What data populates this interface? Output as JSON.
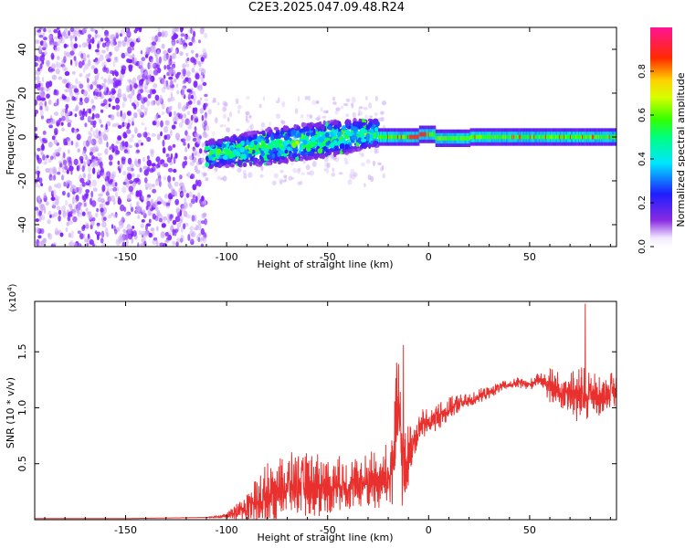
{
  "title": "C2E3.2025.047.09.48.R24",
  "colors": {
    "snr_line": "#e8312e",
    "spectrum_sparse": "#7f1fff",
    "spectrum_light": "#c9a6f5"
  },
  "chart_data": [
    {
      "type": "heatmap",
      "name": "spectrogram",
      "xlabel": "Height of straight line (km)",
      "ylabel": "Frequency (Hz)",
      "xlim": [
        -195,
        93
      ],
      "ylim": [
        -50,
        50
      ],
      "x_ticks": [
        -150,
        -100,
        -50,
        0,
        50
      ],
      "x_tick_labels": [
        "-150",
        "-100",
        "-50",
        "0",
        "50"
      ],
      "y_ticks": [
        -40,
        -20,
        0,
        20,
        40
      ],
      "y_tick_labels": [
        "-40",
        "-20",
        "0",
        "20",
        "40"
      ],
      "colorbar": {
        "label": "Normalized spectral amplitude",
        "range": [
          0,
          1
        ],
        "ticks": [
          0.0,
          0.2,
          0.4,
          0.6,
          0.8
        ],
        "tick_labels": [
          "0.0",
          "0.2",
          "0.4",
          "0.6",
          "0.8"
        ],
        "colormap": "rainbow (white-purple-blue-cyan-green-yellow-red-magenta)"
      },
      "regions": [
        {
          "x_range": [
            -195,
            -110
          ],
          "freq_range": [
            -50,
            50
          ],
          "amplitude": 0.08,
          "pattern": "sparse broadband speckle"
        },
        {
          "x_range": [
            -110,
            -25
          ],
          "freq_center": [
            -8,
            2
          ],
          "freq_halfwidth": 6,
          "amplitude": 0.3,
          "pattern": "noisy band"
        },
        {
          "x_range": [
            -25,
            93
          ],
          "freq_center": 0,
          "freq_halfwidth": 3,
          "amplitude": 0.5,
          "pattern": "narrow carrier line with red peaks"
        }
      ]
    },
    {
      "type": "line",
      "name": "snr",
      "xlabel": "Height of straight line (km)",
      "ylabel": "SNR (10 * v/v)",
      "y_multiplier": "(x10^4)",
      "xlim": [
        -195,
        93
      ],
      "ylim": [
        0,
        1.95
      ],
      "x_ticks": [
        -150,
        -100,
        -50,
        0,
        50
      ],
      "x_tick_labels": [
        "-150",
        "-100",
        "-50",
        "0",
        "50"
      ],
      "y_ticks": [
        0.5,
        1.0,
        1.5
      ],
      "y_tick_labels": [
        "0.5",
        "1.0",
        "1.5"
      ],
      "series": [
        {
          "x": [
            -195,
            -150,
            -110,
            -100,
            -95,
            -90,
            -85,
            -80,
            -75,
            -70,
            -65,
            -60,
            -55,
            -50,
            -45,
            -40,
            -35,
            -30,
            -25,
            -20,
            -17,
            -15,
            -13,
            -12,
            -10,
            -8,
            -5,
            0,
            5,
            10,
            15,
            20,
            25,
            30,
            35,
            40,
            45,
            50,
            55,
            60,
            65,
            70,
            75,
            80,
            85,
            90,
            93
          ],
          "y": [
            0.01,
            0.01,
            0.02,
            0.03,
            0.06,
            0.09,
            0.14,
            0.2,
            0.25,
            0.28,
            0.3,
            0.29,
            0.27,
            0.28,
            0.3,
            0.29,
            0.3,
            0.32,
            0.33,
            0.33,
            0.55,
            0.95,
            0.5,
            0.35,
            0.55,
            0.68,
            0.8,
            0.86,
            0.92,
            0.98,
            1.03,
            1.05,
            1.1,
            1.13,
            1.18,
            1.2,
            1.22,
            1.2,
            1.26,
            1.18,
            1.12,
            1.15,
            1.06,
            1.12,
            1.08,
            1.15,
            1.12
          ],
          "noise": [
            0.0,
            0.0,
            0.0,
            0.02,
            0.06,
            0.1,
            0.18,
            0.22,
            0.22,
            0.22,
            0.22,
            0.22,
            0.22,
            0.2,
            0.2,
            0.18,
            0.18,
            0.2,
            0.22,
            0.25,
            0.35,
            0.5,
            0.35,
            0.3,
            0.22,
            0.14,
            0.12,
            0.1,
            0.09,
            0.08,
            0.07,
            0.05,
            0.05,
            0.04,
            0.04,
            0.03,
            0.04,
            0.04,
            0.04,
            0.12,
            0.14,
            0.16,
            0.22,
            0.16,
            0.14,
            0.12,
            0.12
          ]
        }
      ],
      "peaks": [
        {
          "x": -12.5,
          "y": 1.56
        },
        {
          "x": 77.5,
          "y": 1.93
        }
      ]
    }
  ]
}
